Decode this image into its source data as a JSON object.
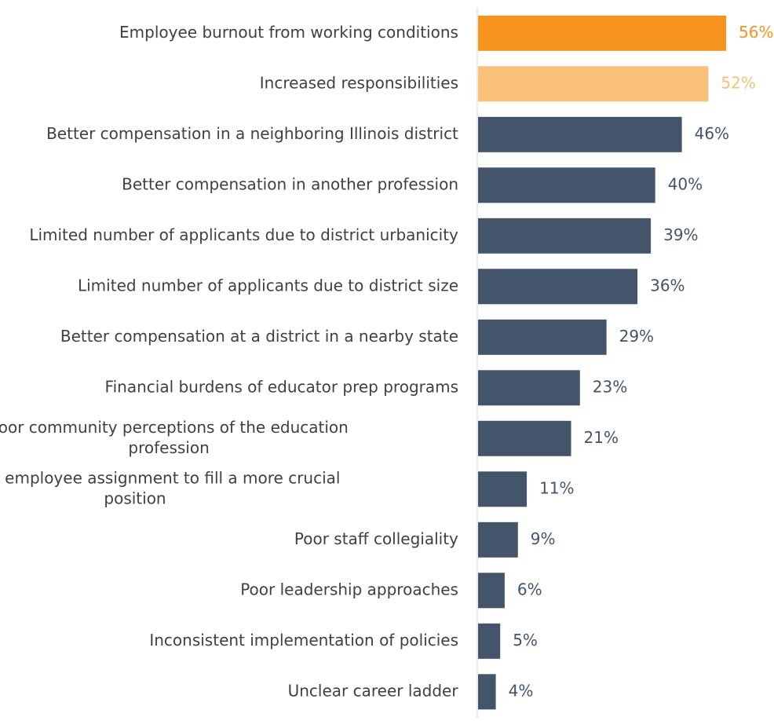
{
  "chart_data": {
    "type": "bar",
    "orientation": "horizontal",
    "categories": [
      [
        "Employee burnout from working conditions"
      ],
      [
        "Increased responsibilities"
      ],
      [
        "Better compensation in a neighboring Illinois district"
      ],
      [
        "Better compensation in another profession"
      ],
      [
        "Limited number of applicants due to district urbanicity"
      ],
      [
        "Limited number of applicants due to district size"
      ],
      [
        "Better compensation at a district in a nearby state"
      ],
      [
        "Financial burdens of educator prep programs"
      ],
      [
        "Poor community perceptions of the education",
        "profession"
      ],
      [
        "Changed employee assignment to fill a more crucial",
        "position"
      ],
      [
        "Poor staff collegiality"
      ],
      [
        "Poor leadership approaches"
      ],
      [
        "Inconsistent implementation of policies"
      ],
      [
        "Unclear career ladder"
      ]
    ],
    "values": [
      56,
      52,
      46,
      40,
      39,
      36,
      29,
      23,
      21,
      11,
      9,
      6,
      5,
      4
    ],
    "value_labels": [
      "56%",
      "52%",
      "46%",
      "40%",
      "39%",
      "36%",
      "29%",
      "23%",
      "21%",
      "11%",
      "9%",
      "6%",
      "5%",
      "4%"
    ],
    "bar_colors": [
      "#F7941D",
      "#F9C07A",
      "#44546A",
      "#44546A",
      "#44546A",
      "#44546A",
      "#44546A",
      "#44546A",
      "#44546A",
      "#44546A",
      "#44546A",
      "#44546A",
      "#44546A",
      "#44546A"
    ],
    "label_colors": [
      "#F7941D",
      "#F9C07A",
      "#44546A",
      "#44546A",
      "#44546A",
      "#44546A",
      "#44546A",
      "#44546A",
      "#44546A",
      "#44546A",
      "#44546A",
      "#44546A",
      "#44546A",
      "#44546A"
    ],
    "axis_color": "#D9D9D9",
    "grid": false,
    "xlim": [
      0,
      56
    ]
  }
}
